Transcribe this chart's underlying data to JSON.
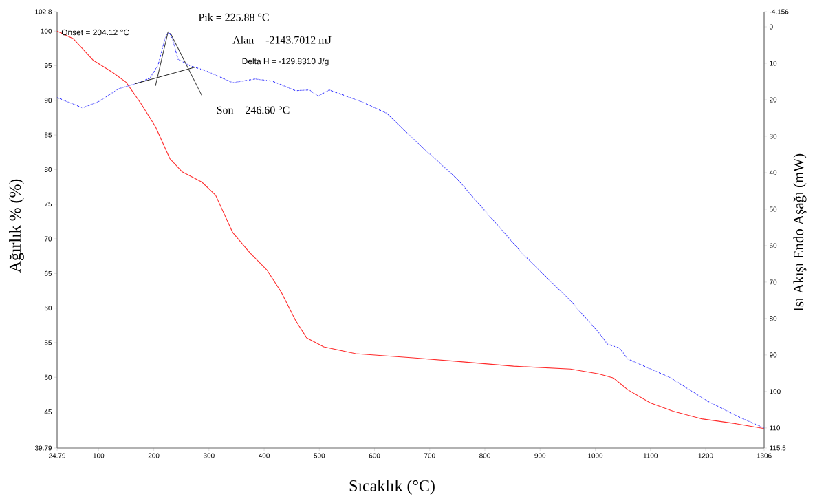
{
  "chart_data": {
    "type": "line",
    "xlabel": "Sıcaklık (°C)",
    "ylabel": "Ağırlık % (%)",
    "y2label": "Isı Akışı Endo Aşağı (mW)",
    "annotations": [
      "Onset = 204.12 °C",
      "Pik = 225.88 °C",
      "Alan = -2143.7012 mJ",
      "Delta H = -129.8310 J/g",
      "Son = 246.60 °C"
    ],
    "xlim": [
      24.79,
      1306
    ],
    "ylim": [
      39.79,
      102.8
    ],
    "y2lim": [
      115.5,
      -4.156
    ],
    "xticks": [
      24.79,
      100,
      200,
      300,
      400,
      500,
      600,
      700,
      800,
      900,
      1000,
      1100,
      1200,
      1306
    ],
    "yticks": [
      39.79,
      45,
      50,
      55,
      60,
      65,
      70,
      75,
      80,
      85,
      90,
      95,
      100,
      102.8
    ],
    "y2ticks": [
      -4.156,
      0,
      10,
      20,
      30,
      40,
      50,
      60,
      70,
      80,
      90,
      100,
      110,
      115.5
    ],
    "grid": false,
    "marker": "none",
    "series": [
      {
        "color": "#ff2a2a",
        "line_style": "solid",
        "x": [
          24.79,
          54,
          90,
          126,
          150,
          177,
          203,
          229,
          251,
          287,
          312,
          343,
          374,
          405,
          431,
          457,
          477,
          508,
          566,
          670,
          749,
          852,
          955,
          1006,
          1033,
          1059,
          1100,
          1141,
          1193,
          1255,
          1306
        ],
        "values": [
          100,
          98.9,
          95.8,
          94.0,
          92.6,
          89.5,
          86.2,
          81.6,
          79.7,
          78.2,
          76.3,
          70.9,
          68.0,
          65.5,
          62.3,
          58.2,
          55.7,
          54.4,
          53.4,
          52.8,
          52.3,
          51.6,
          51.2,
          50.5,
          49.9,
          48.2,
          46.3,
          45.1,
          44.0,
          43.3,
          42.6
        ]
      },
      {
        "color": "#2a2aff",
        "line_style": "dotted",
        "axis": "y2",
        "x": [
          24.79,
          71,
          100,
          136,
          167,
          193,
          208,
          220,
          227,
          234,
          244,
          266,
          292,
          343,
          384,
          415,
          457,
          482,
          498,
          518,
          576,
          622,
          670,
          749,
          867,
          955,
          1006,
          1022,
          1044,
          1059,
          1136,
          1203,
          1265,
          1306
        ],
        "values": [
          19.4,
          22.2,
          20.5,
          17.0,
          15.6,
          14.1,
          10.4,
          3.4,
          1.3,
          3.4,
          8.9,
          10.7,
          11.9,
          15.3,
          14.3,
          14.9,
          17.5,
          17.3,
          19.0,
          17.3,
          20.5,
          23.7,
          30.7,
          41.6,
          62.0,
          75.1,
          83.8,
          87.0,
          88.1,
          91.1,
          96.2,
          102.6,
          107.3,
          110
        ]
      },
      {
        "color": "#202020",
        "line_style": "solid",
        "axis": "y2",
        "x": [
          166,
          274
        ],
        "values": [
          15.6,
          11.1
        ]
      },
      {
        "color": "#404040",
        "line_style": "solid",
        "axis": "y2",
        "x": [
          203,
          226
        ],
        "values": [
          16.2,
          1.3
        ]
      },
      {
        "color": "#404040",
        "line_style": "solid",
        "axis": "y2",
        "x": [
          230,
          287
        ],
        "values": [
          1.7,
          18.8
        ]
      }
    ]
  }
}
